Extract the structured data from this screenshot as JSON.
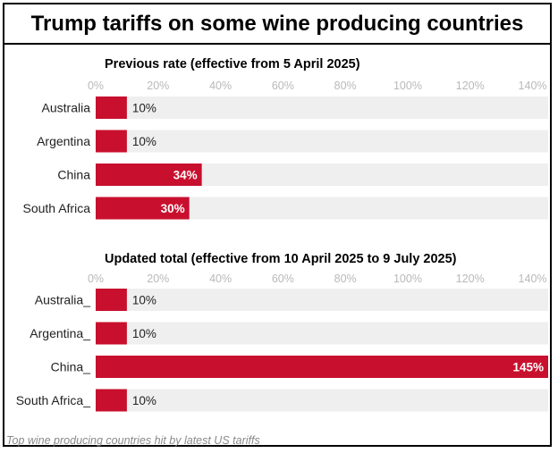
{
  "title": "Trump tariffs on some wine producing countries",
  "footer": "Top wine producing countries hit by latest US tariffs",
  "colors": {
    "bar": "#c8102e",
    "track": "#efefef",
    "tick": "#b9b9b9"
  },
  "chart_data": [
    {
      "type": "bar",
      "orientation": "horizontal",
      "title": "Previous rate (effective from 5 April 2025)",
      "categories": [
        "Australia",
        "Argentina",
        "China",
        "South Africa"
      ],
      "values": [
        10,
        10,
        34,
        30
      ],
      "value_labels": [
        "10%",
        "10%",
        "34%",
        "30%"
      ],
      "xlim": [
        0,
        145
      ],
      "xticks": [
        "0%",
        "20%",
        "40%",
        "60%",
        "80%",
        "100%",
        "120%",
        "140%"
      ],
      "grid": false
    },
    {
      "type": "bar",
      "orientation": "horizontal",
      "title": "Updated total (effective from 10 April 2025 to 9 July 2025)",
      "categories": [
        "Australia_",
        "Argentina_",
        "China_",
        "South Africa_"
      ],
      "values": [
        10,
        10,
        145,
        10
      ],
      "value_labels": [
        "10%",
        "10%",
        "145%",
        "10%"
      ],
      "xlim": [
        0,
        145
      ],
      "xticks": [
        "0%",
        "20%",
        "40%",
        "60%",
        "80%",
        "100%",
        "120%",
        "140%"
      ],
      "grid": false
    }
  ]
}
